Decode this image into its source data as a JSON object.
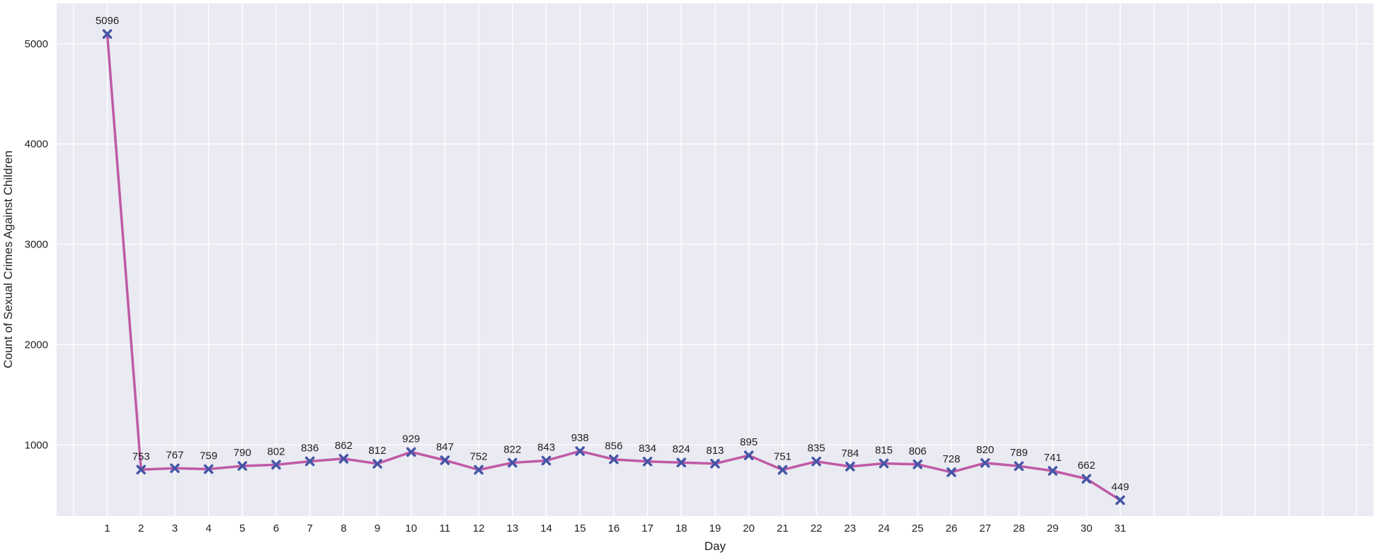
{
  "chart_data": {
    "type": "line",
    "title": "",
    "xlabel": "Day",
    "ylabel": "Count of Sexual Crimes Against Children",
    "x": [
      1,
      2,
      3,
      4,
      5,
      6,
      7,
      8,
      9,
      10,
      11,
      12,
      13,
      14,
      15,
      16,
      17,
      18,
      19,
      20,
      21,
      22,
      23,
      24,
      25,
      26,
      27,
      28,
      29,
      30,
      31
    ],
    "series": [
      {
        "values": [
          5096,
          753,
          767,
          759,
          790,
          802,
          836,
          862,
          812,
          929,
          847,
          752,
          822,
          843,
          938,
          856,
          834,
          824,
          813,
          895,
          751,
          835,
          784,
          815,
          806,
          728,
          820,
          789,
          741,
          662,
          449
        ]
      }
    ],
    "xlim": [
      -0.5,
      38.5
    ],
    "ylim": [
      290,
      5400
    ],
    "yticks": [
      1000,
      2000,
      3000,
      4000,
      5000
    ],
    "grid": true,
    "line_color": "#bf5aa6",
    "marker": "x",
    "marker_color": "#4455a6",
    "background_color": "#eaeaf2",
    "grid_color": "#ffffff"
  }
}
